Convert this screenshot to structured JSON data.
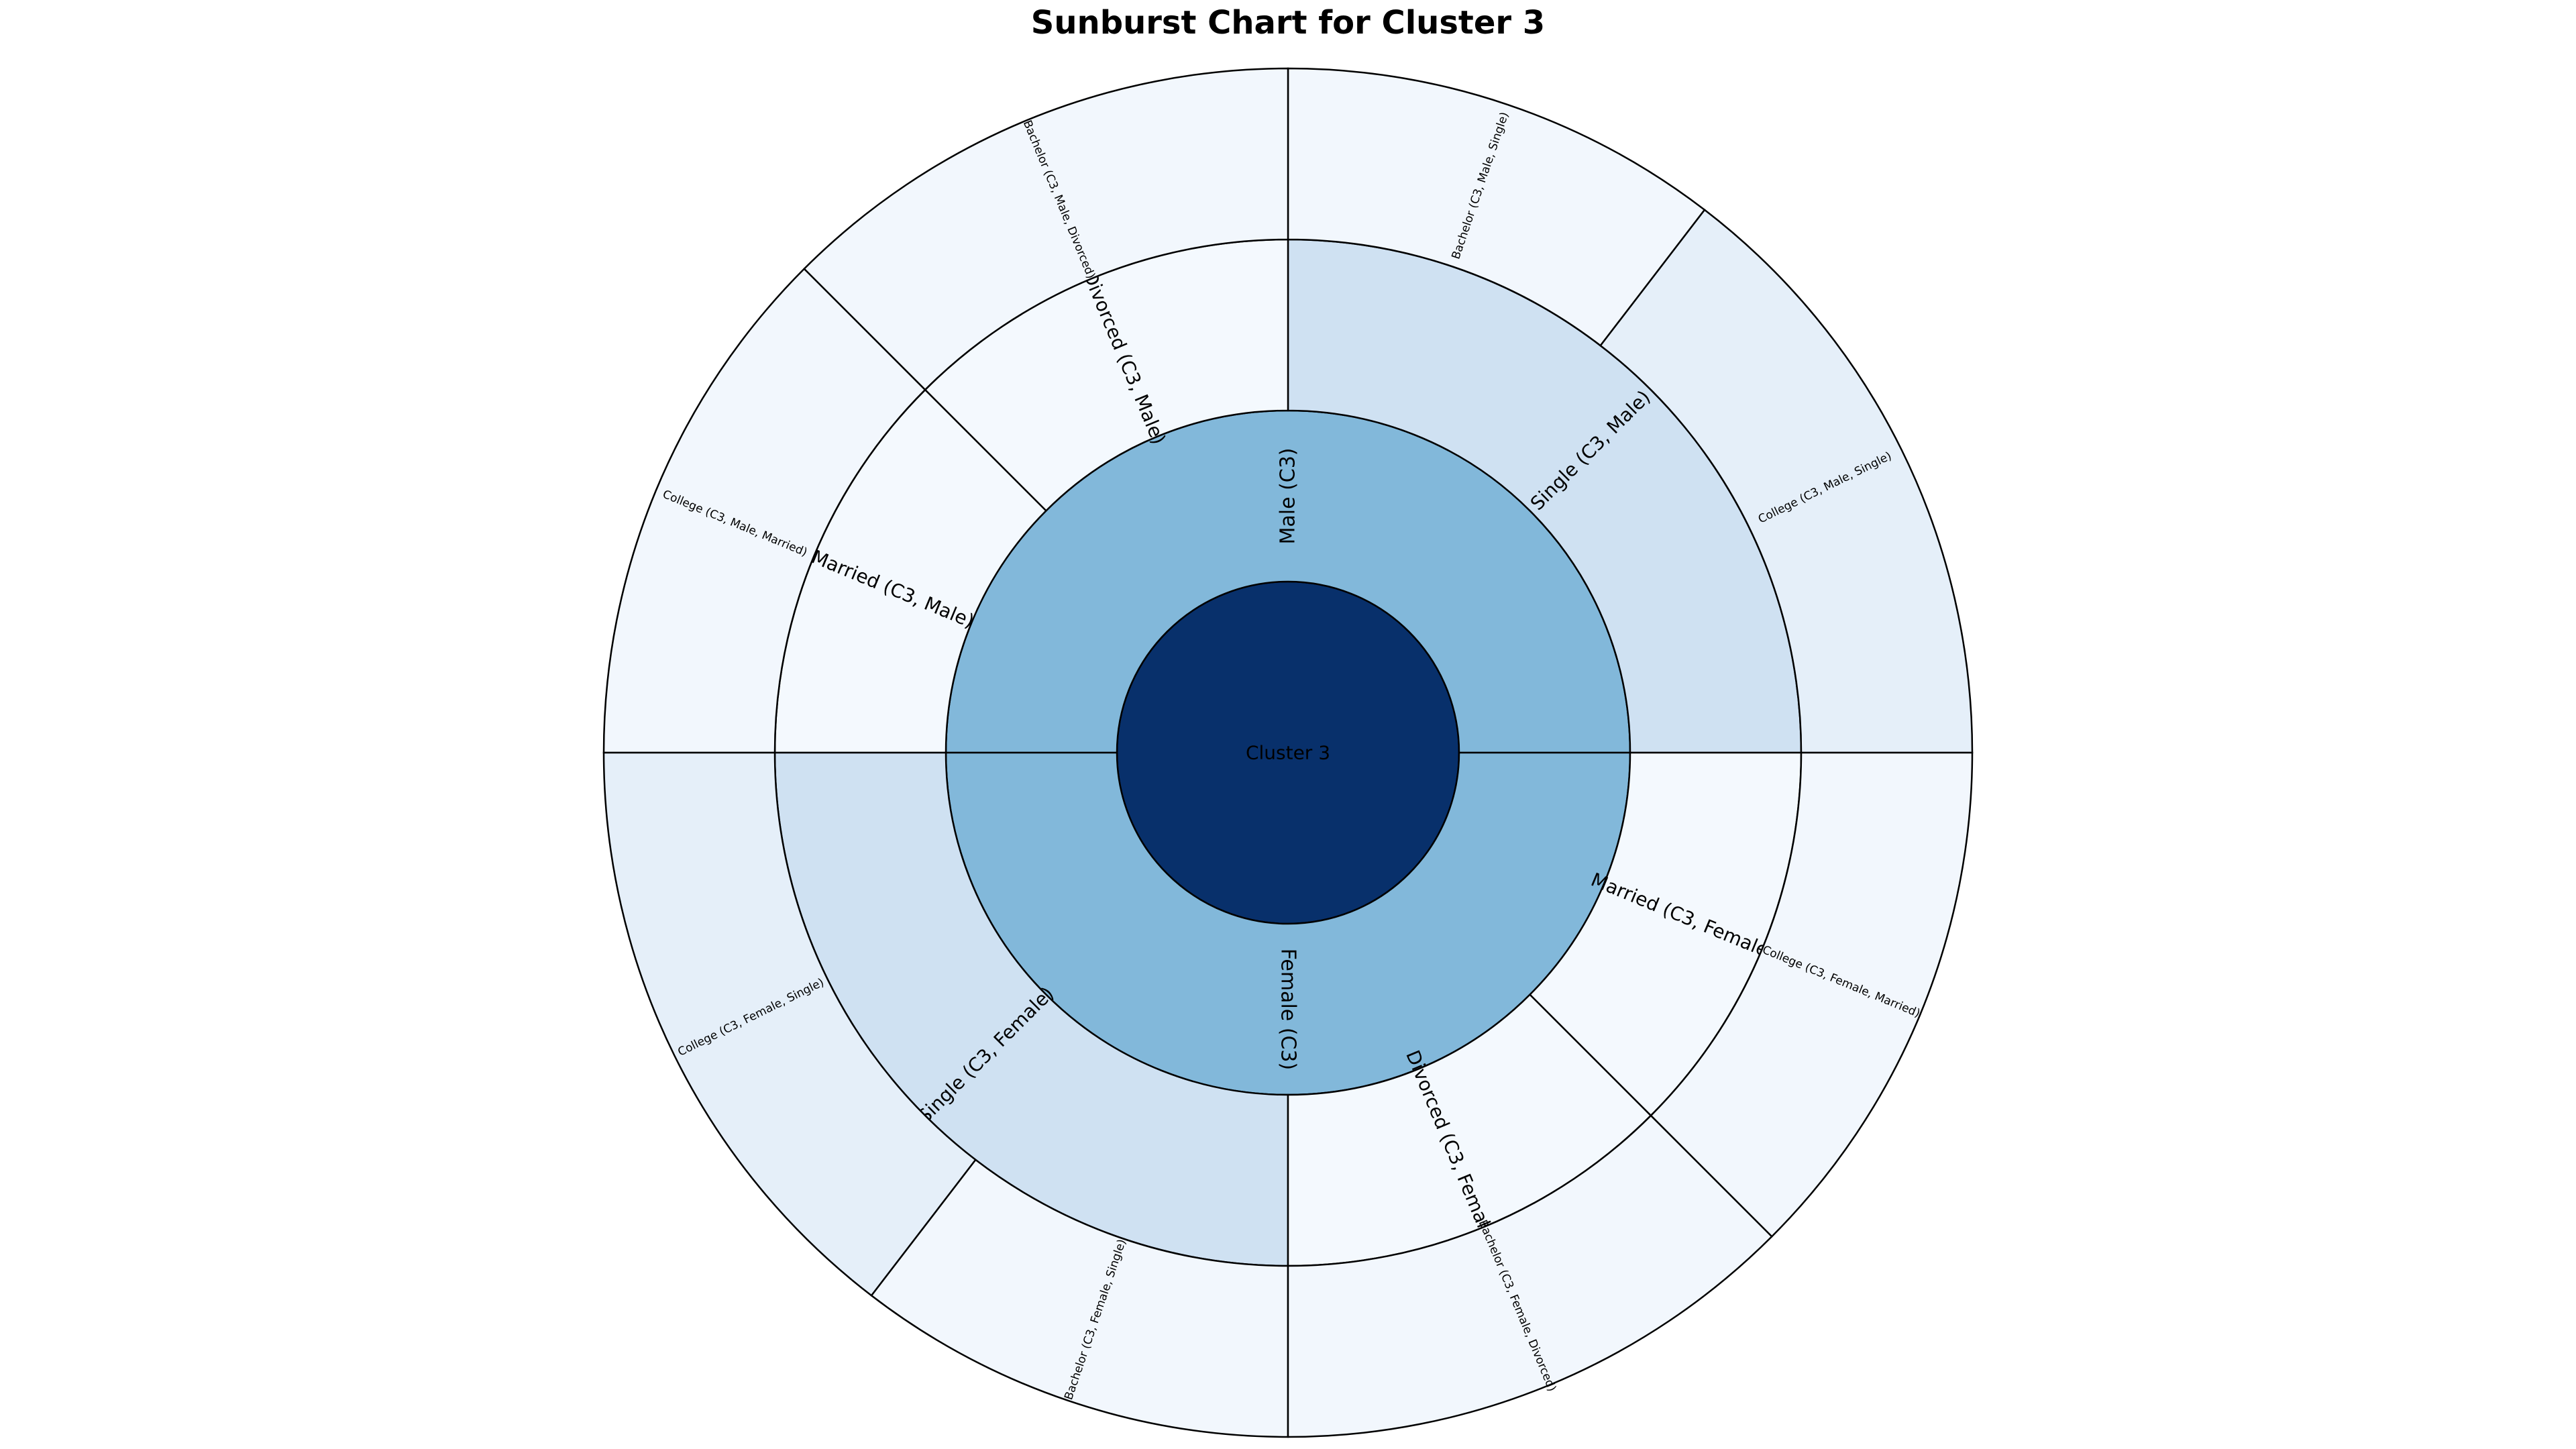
{
  "chart_data": {
    "type": "sunburst",
    "title": "Sunburst Chart for Cluster 3",
    "colors": {
      "level0": "#08306b",
      "level1": "#82b8da",
      "level2_single": "#cfe1f2",
      "level2_other": "#f4f9fe",
      "level3_college_single": "#e5eff9",
      "level3_other": "#f2f7fd"
    },
    "root": {
      "label": "Cluster 3",
      "children": [
        {
          "label": "Male (C3)",
          "value": 12,
          "children": [
            {
              "label": "Single (C3, Male)",
              "value": 6,
              "children": [
                {
                  "label": "College (C3, Male, Single)",
                  "value": 3.5
                },
                {
                  "label": "Bachelor (C3, Male, Single)",
                  "value": 2.5
                }
              ]
            },
            {
              "label": "Divorced (C3, Male)",
              "value": 3,
              "children": [
                {
                  "label": "Bachelor (C3, Male, Divorced)",
                  "value": 3
                }
              ]
            },
            {
              "label": "Married (C3, Male)",
              "value": 3,
              "children": [
                {
                  "label": "College (C3, Male, Married)",
                  "value": 3
                }
              ]
            }
          ]
        },
        {
          "label": "Female (C3)",
          "value": 12,
          "children": [
            {
              "label": "Single (C3, Female)",
              "value": 6,
              "children": [
                {
                  "label": "College (C3, Female, Single)",
                  "value": 3.5
                },
                {
                  "label": "Bachelor (C3, Female, Single)",
                  "value": 2.5
                }
              ]
            },
            {
              "label": "Divorced (C3, Female)",
              "value": 3,
              "children": [
                {
                  "label": "Bachelor (C3, Female, Divorced)",
                  "value": 3
                }
              ]
            },
            {
              "label": "Married (C3, Female)",
              "value": 3,
              "children": [
                {
                  "label": "College (C3, Female, Married)",
                  "value": 3
                }
              ]
            }
          ]
        }
      ]
    }
  }
}
